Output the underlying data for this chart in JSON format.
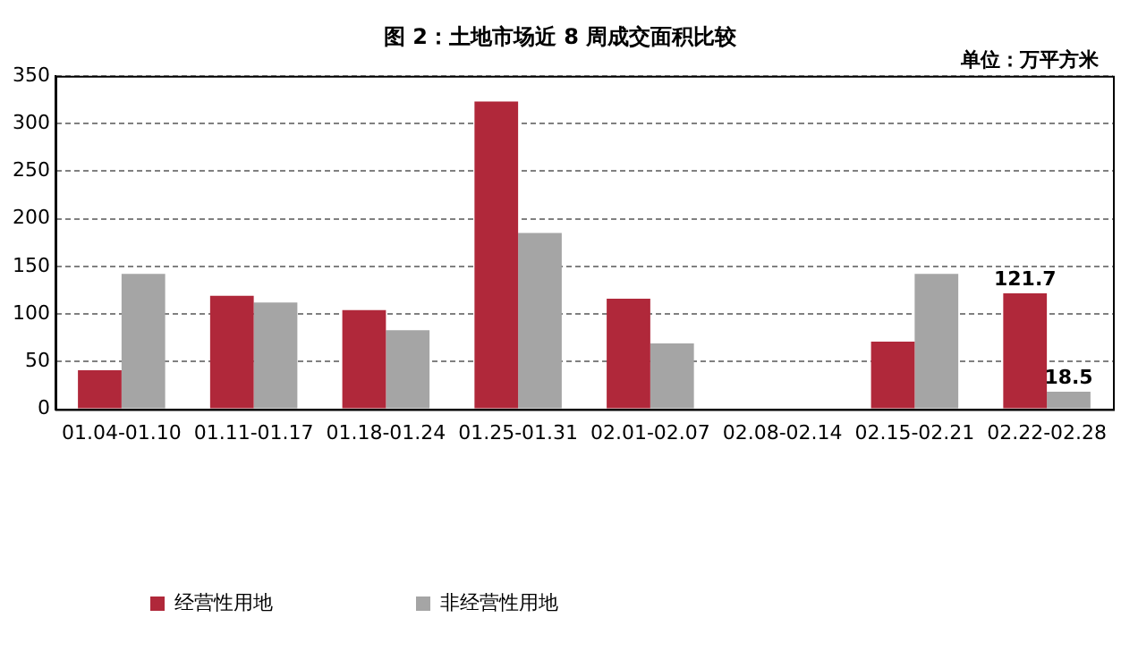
{
  "chart_data": {
    "type": "bar",
    "title": "图 2：土地市场近 8 周成交面积比较",
    "annotations": [
      "单位：万平方米"
    ],
    "categories": [
      "01.04-01.10",
      "01.11-01.17",
      "01.18-01.24",
      "01.25-01.31",
      "02.01-02.07",
      "02.08-02.14",
      "02.15-02.21",
      "02.22-02.28"
    ],
    "series": [
      {
        "name": "经营性用地",
        "color": "#b0283a",
        "values": [
          41,
          119,
          104,
          323,
          116,
          0,
          71,
          121.7
        ],
        "value_labels": [
          null,
          null,
          null,
          null,
          null,
          null,
          null,
          "121.7"
        ]
      },
      {
        "name": "非经营性用地",
        "color": "#a5a5a5",
        "values": [
          142,
          112,
          83,
          185,
          69,
          0,
          142,
          18.5
        ],
        "value_labels": [
          null,
          null,
          null,
          null,
          null,
          null,
          null,
          "18.5"
        ]
      }
    ],
    "ylim": [
      0,
      350
    ],
    "yticks": [
      0,
      50,
      100,
      150,
      200,
      250,
      300,
      350
    ],
    "grid": "y",
    "legend": "bottom"
  }
}
